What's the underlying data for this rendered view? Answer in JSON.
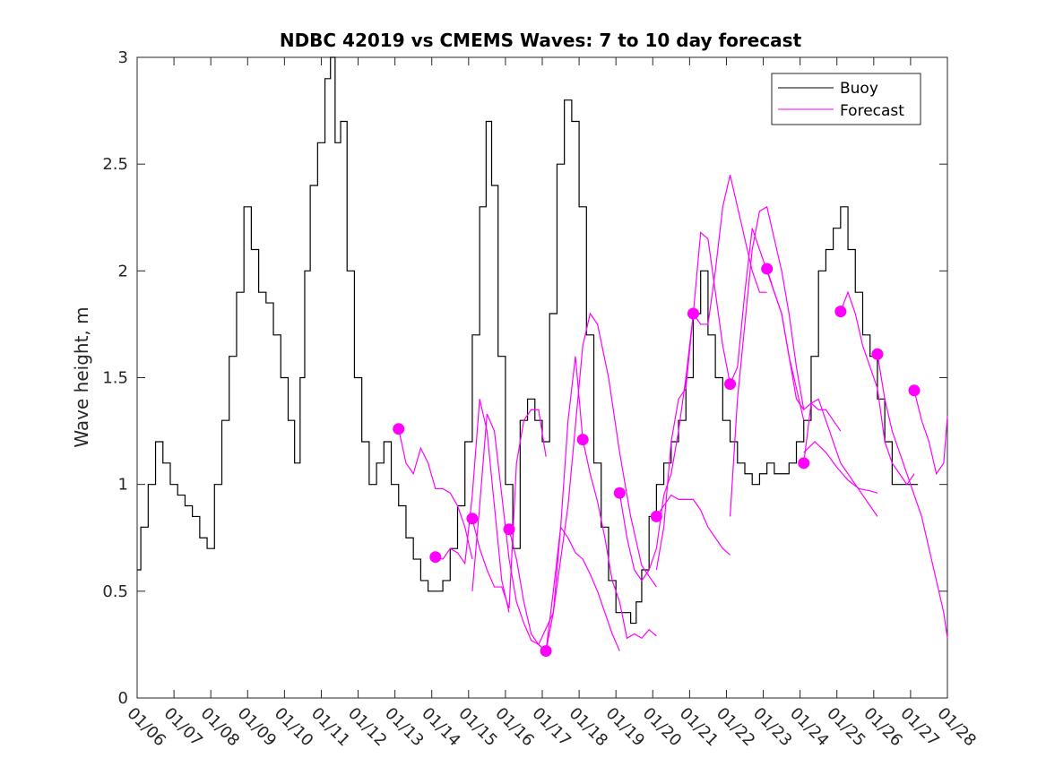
{
  "chart_data": {
    "type": "line",
    "title": "NDBC 42019 vs CMEMS Waves: 7 to 10 day forecast",
    "xlabel": "",
    "ylabel": "Wave height, m",
    "xlim": [
      6,
      28
    ],
    "ylim": [
      0,
      3
    ],
    "x_tick_values": [
      6,
      7,
      8,
      9,
      10,
      11,
      12,
      13,
      14,
      15,
      16,
      17,
      18,
      19,
      20,
      21,
      22,
      23,
      24,
      25,
      26,
      27,
      28
    ],
    "x_tick_labels": [
      "01/06",
      "01/07",
      "01/08",
      "01/09",
      "01/10",
      "01/11",
      "01/12",
      "01/13",
      "01/14",
      "01/15",
      "01/16",
      "01/17",
      "01/18",
      "01/19",
      "01/20",
      "01/21",
      "01/22",
      "01/23",
      "01/24",
      "01/25",
      "01/26",
      "01/27",
      "01/28"
    ],
    "y_tick_values": [
      0,
      0.5,
      1,
      1.5,
      2,
      2.5,
      3
    ],
    "y_tick_labels": [
      "0",
      "0.5",
      "1",
      "1.5",
      "2",
      "2.5",
      "3"
    ],
    "legend": {
      "position": "top-right",
      "entries": [
        "Buoy",
        "Forecast"
      ]
    },
    "colors": {
      "buoy": "#000000",
      "forecast": "#ff00ff"
    },
    "series": [
      {
        "name": "Buoy",
        "x": [
          6.0,
          6.2,
          6.4,
          6.6,
          6.8,
          7.0,
          7.2,
          7.4,
          7.6,
          7.8,
          8.0,
          8.2,
          8.4,
          8.6,
          8.8,
          9.0,
          9.2,
          9.4,
          9.6,
          9.8,
          10.0,
          10.2,
          10.35,
          10.5,
          10.6,
          10.8,
          11.0,
          11.2,
          11.3,
          11.45,
          11.6,
          11.8,
          12.0,
          12.2,
          12.4,
          12.6,
          12.8,
          13.0,
          13.2,
          13.4,
          13.6,
          13.8,
          14.0,
          14.2,
          14.4,
          14.6,
          14.8,
          15.0,
          15.2,
          15.4,
          15.55,
          15.7,
          15.9,
          16.1,
          16.3,
          16.5,
          16.7,
          16.9,
          17.1,
          17.3,
          17.5,
          17.7,
          17.9,
          18.1,
          18.3,
          18.5,
          18.7,
          18.9,
          19.1,
          19.3,
          19.5,
          19.6,
          19.8,
          20.0,
          20.2,
          20.4,
          20.6,
          20.8,
          21.0,
          21.2,
          21.4,
          21.6,
          21.8,
          22.0,
          22.2,
          22.4,
          22.6,
          22.8,
          23.0,
          23.2,
          23.4,
          23.6,
          23.8,
          24.0,
          24.2,
          24.4,
          24.6,
          24.8,
          25.0,
          25.2,
          25.4,
          25.6,
          25.8,
          26.0,
          26.2,
          26.4,
          26.6,
          26.8,
          27.0,
          27.2
        ],
        "values": [
          0.6,
          0.8,
          1.0,
          1.2,
          1.1,
          1.0,
          0.95,
          0.9,
          0.85,
          0.75,
          0.7,
          1.0,
          1.3,
          1.6,
          1.9,
          2.3,
          2.1,
          1.9,
          1.85,
          1.7,
          1.5,
          1.3,
          1.1,
          1.5,
          2.0,
          2.4,
          2.6,
          2.9,
          3.0,
          2.6,
          2.7,
          2.0,
          1.5,
          1.2,
          1.0,
          1.1,
          1.2,
          1.0,
          0.9,
          0.75,
          0.65,
          0.55,
          0.5,
          0.5,
          0.55,
          0.7,
          0.9,
          1.2,
          1.7,
          2.3,
          2.7,
          2.4,
          1.6,
          1.0,
          0.7,
          1.3,
          1.4,
          1.3,
          1.2,
          1.8,
          2.5,
          2.8,
          2.7,
          2.3,
          1.7,
          1.1,
          0.8,
          0.55,
          0.4,
          0.4,
          0.35,
          0.45,
          0.6,
          0.85,
          1.0,
          1.1,
          1.2,
          1.3,
          1.5,
          1.8,
          2.0,
          1.7,
          1.5,
          1.3,
          1.2,
          1.1,
          1.05,
          1.0,
          1.05,
          1.1,
          1.05,
          1.05,
          1.1,
          1.2,
          1.3,
          1.6,
          2.0,
          2.1,
          2.2,
          2.3,
          2.1,
          1.9,
          1.7,
          1.6,
          1.4,
          1.2,
          1.0,
          1.0,
          1.0,
          1.0
        ]
      },
      {
        "name": "Forecast",
        "segments": [
          {
            "x": [
              13.1,
              13.3,
              13.5,
              13.7,
              13.9,
              14.1,
              14.3,
              14.5,
              14.7,
              14.9,
              15.1
            ],
            "values": [
              1.26,
              1.1,
              1.05,
              1.17,
              1.1,
              0.98,
              0.98,
              0.96,
              0.9,
              0.8,
              0.65
            ]
          },
          {
            "x": [
              14.1,
              14.3,
              14.5,
              14.7,
              14.9,
              15.1,
              15.3,
              15.5,
              15.7,
              15.9,
              16.1
            ],
            "values": [
              0.66,
              0.65,
              0.7,
              0.68,
              0.63,
              0.95,
              1.4,
              1.25,
              0.9,
              0.55,
              0.4
            ]
          },
          {
            "x": [
              15.1,
              15.3,
              15.5,
              15.7,
              15.9,
              16.1,
              16.3,
              16.5,
              16.7,
              16.9,
              17.1
            ],
            "values": [
              0.84,
              0.7,
              0.6,
              0.52,
              0.52,
              0.42,
              1.1,
              1.3,
              1.35,
              1.35,
              1.13
            ]
          },
          {
            "x": [
              15.1,
              15.3,
              15.5,
              15.7,
              15.9,
              16.1,
              16.3,
              16.5,
              16.7,
              16.9,
              17.1
            ],
            "values": [
              0.5,
              0.9,
              1.33,
              1.25,
              0.95,
              0.65,
              0.45,
              0.35,
              0.27,
              0.25,
              0.22
            ]
          },
          {
            "x": [
              16.1,
              16.3,
              16.5,
              16.7,
              16.9,
              17.1,
              17.3,
              17.5,
              17.7,
              17.9,
              18.1
            ],
            "values": [
              0.79,
              0.65,
              0.45,
              0.3,
              0.25,
              0.22,
              0.4,
              0.8,
              1.3,
              1.6,
              1.21
            ]
          },
          {
            "x": [
              17.1,
              17.3,
              17.5,
              17.7,
              17.9,
              18.1,
              18.3,
              18.5,
              18.7,
              18.9,
              19.1
            ],
            "values": [
              0.22,
              0.5,
              0.8,
              0.75,
              0.68,
              0.65,
              0.58,
              0.5,
              0.4,
              0.3,
              0.22
            ]
          },
          {
            "x": [
              16.9,
              17.3,
              17.7,
              18.1,
              18.3,
              18.5,
              18.8,
              19.1,
              19.4,
              19.7,
              20.1
            ],
            "values": [
              0.25,
              0.4,
              0.9,
              1.65,
              1.8,
              1.75,
              1.5,
              1.15,
              0.85,
              0.62,
              0.52
            ]
          },
          {
            "x": [
              18.1,
              18.3,
              18.5,
              18.7,
              18.9,
              19.1,
              19.3,
              19.5,
              19.7,
              19.9,
              20.1
            ],
            "values": [
              1.21,
              1.05,
              0.92,
              0.75,
              0.55,
              0.45,
              0.28,
              0.3,
              0.28,
              0.32,
              0.29
            ]
          },
          {
            "x": [
              19.1,
              19.3,
              19.5,
              19.7,
              19.9,
              20.1,
              20.3,
              20.5,
              20.7,
              20.9,
              21.1
            ],
            "values": [
              0.96,
              0.75,
              0.6,
              0.55,
              0.6,
              0.7,
              0.95,
              1.05,
              1.25,
              1.5,
              1.8
            ]
          },
          {
            "x": [
              20.1,
              20.3,
              20.5,
              20.7,
              20.9,
              21.1,
              21.3,
              21.5,
              21.7,
              21.9,
              22.1
            ],
            "values": [
              0.85,
              0.9,
              0.95,
              0.93,
              0.93,
              0.93,
              0.88,
              0.8,
              0.75,
              0.7,
              0.67
            ]
          },
          {
            "x": [
              20.1,
              20.3,
              20.5,
              20.7,
              20.9,
              21.1,
              21.3,
              21.5,
              21.7,
              21.9,
              22.1
            ],
            "values": [
              0.6,
              0.8,
              1.2,
              1.4,
              1.45,
              1.8,
              2.18,
              2.15,
              1.9,
              1.65,
              1.47
            ]
          },
          {
            "x": [
              21.1,
              21.3,
              21.5,
              21.7,
              21.9,
              22.1,
              22.3,
              22.5,
              22.7,
              22.9,
              23.1
            ],
            "values": [
              1.8,
              1.75,
              1.75,
              2.0,
              2.3,
              2.45,
              2.3,
              2.15,
              2.0,
              1.9,
              1.9
            ]
          },
          {
            "x": [
              22.1,
              22.3,
              22.5,
              22.7,
              22.9,
              23.1,
              23.3,
              23.5,
              23.7,
              23.9,
              24.1
            ],
            "values": [
              1.47,
              1.55,
              1.9,
              2.2,
              2.1,
              2.0,
              1.9,
              1.8,
              1.6,
              1.45,
              1.3
            ]
          },
          {
            "x": [
              22.1,
              22.3,
              22.5,
              22.7,
              22.9,
              23.1,
              23.3,
              23.5,
              23.7,
              23.9,
              24.1
            ],
            "values": [
              0.85,
              1.4,
              1.75,
              2.1,
              2.28,
              2.3,
              2.15,
              2.0,
              1.8,
              1.55,
              1.35
            ]
          },
          {
            "x": [
              23.1,
              23.3,
              23.5,
              23.7,
              23.9,
              24.1,
              24.3,
              24.5,
              24.7,
              24.9,
              25.1
            ],
            "values": [
              2.01,
              1.9,
              1.8,
              1.6,
              1.4,
              1.35,
              1.38,
              1.35,
              1.35,
              1.3,
              1.25
            ]
          },
          {
            "x": [
              24.1,
              24.3,
              24.5,
              24.7,
              24.9,
              25.1,
              25.3,
              25.5,
              25.7,
              25.9,
              26.1
            ],
            "values": [
              1.1,
              1.38,
              1.4,
              1.3,
              1.2,
              1.1,
              1.05,
              1.0,
              0.95,
              0.9,
              0.85
            ]
          },
          {
            "x": [
              25.1,
              25.3,
              25.5,
              25.7,
              25.9,
              26.1,
              26.3,
              26.5,
              26.7,
              26.9,
              27.1
            ],
            "values": [
              1.81,
              1.9,
              1.8,
              1.65,
              1.55,
              1.45,
              1.2,
              1.1,
              1.05,
              1.0,
              1.05
            ]
          },
          {
            "x": [
              26.1,
              26.3,
              26.5,
              26.7,
              26.9,
              27.1,
              27.3,
              27.5,
              27.7,
              27.9,
              28.0
            ],
            "values": [
              1.61,
              1.4,
              1.25,
              1.15,
              1.05,
              0.95,
              0.85,
              0.7,
              0.55,
              0.4,
              0.28
            ]
          },
          {
            "x": [
              27.1,
              27.3,
              27.5,
              27.7,
              27.9,
              28.0
            ],
            "values": [
              1.44,
              1.3,
              1.2,
              1.05,
              1.1,
              1.32
            ]
          },
          {
            "x": [
              24.1,
              24.4,
              24.7,
              25.0,
              25.3,
              25.6,
              25.9,
              26.1
            ],
            "values": [
              1.15,
              1.2,
              1.15,
              1.08,
              1.02,
              0.98,
              0.97,
              0.96
            ]
          }
        ],
        "markers": {
          "x": [
            13.1,
            14.1,
            15.1,
            16.1,
            17.1,
            18.1,
            19.1,
            20.1,
            21.1,
            22.1,
            23.1,
            24.1,
            25.1,
            26.1,
            27.1
          ],
          "values": [
            1.26,
            0.66,
            0.84,
            0.79,
            0.22,
            1.21,
            0.96,
            0.85,
            1.8,
            1.47,
            2.01,
            1.1,
            1.81,
            1.61,
            1.44
          ]
        }
      }
    ]
  }
}
